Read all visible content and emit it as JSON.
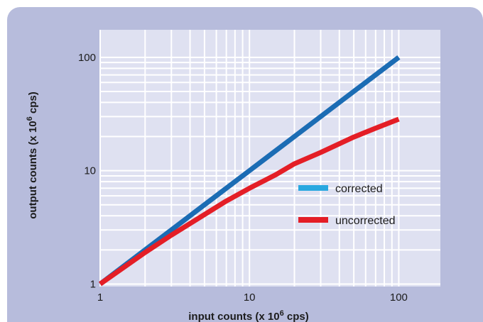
{
  "chart_data": {
    "type": "line",
    "title": "",
    "xlabel": {
      "prefix": "input counts (x 10",
      "sup": "6",
      "suffix": " cps)"
    },
    "ylabel": {
      "prefix": "output counts (x 10",
      "sup": "6",
      "suffix": " cps)"
    },
    "xscale": "log",
    "yscale": "log",
    "xlim": [
      1,
      190
    ],
    "ylim": [
      0.95,
      175
    ],
    "x_ticks": [
      1,
      10,
      100
    ],
    "x_tick_labels": [
      "1",
      "10",
      "100"
    ],
    "y_ticks": [
      1,
      10,
      100
    ],
    "y_tick_labels": [
      "1",
      "10",
      "100"
    ],
    "grid": true,
    "legend_position": "center-right",
    "series": [
      {
        "name": "corrected",
        "color": "#1b6cb4",
        "legend_color": "#29a8e0",
        "x": [
          1,
          2,
          5,
          10,
          20,
          50,
          100
        ],
        "y": [
          1,
          2,
          5,
          10,
          20,
          50,
          100
        ]
      },
      {
        "name": "uncorrected",
        "color": "#e41e26",
        "legend_color": "#e41e26",
        "x": [
          1,
          2,
          3,
          5,
          7,
          10,
          15,
          20,
          30,
          50,
          70,
          100
        ],
        "y": [
          1,
          1.9,
          2.7,
          4.1,
          5.4,
          7.0,
          9.2,
          11.5,
          14.5,
          19.8,
          23.7,
          28.5
        ]
      }
    ]
  }
}
